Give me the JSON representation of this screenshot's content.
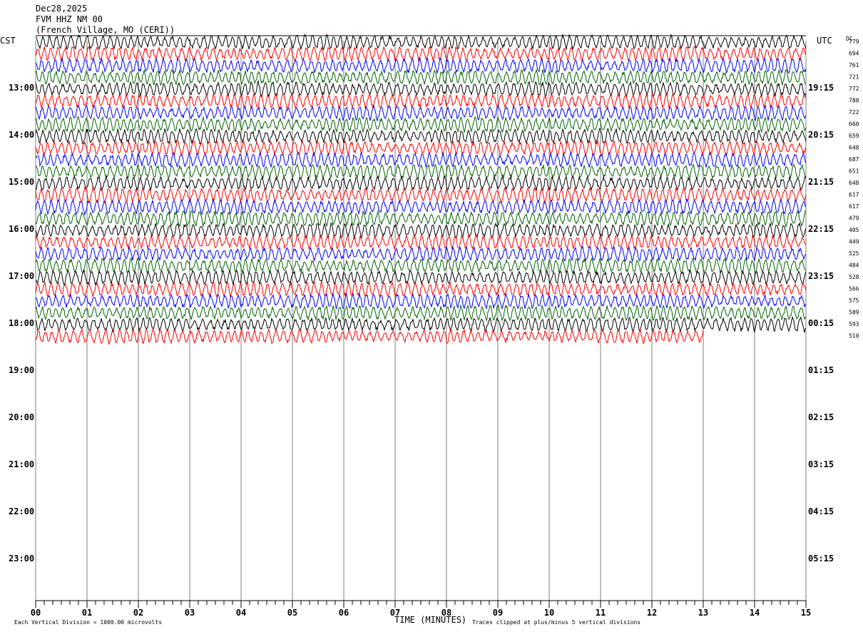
{
  "header": {
    "date": "Dec28,2025",
    "station": "FVM HHZ NM 00",
    "location": "(French Village, MO (CERI))"
  },
  "left_tz": "CST",
  "right_tz": "UTC",
  "dc_label": "DC",
  "footer": {
    "scale_note": "Each Vertical Division = 1000.00 microvolts",
    "xlabel": "TIME (MINUTES)",
    "clip_note": "Traces clipped at plus/minus 5 vertical divisions"
  },
  "colors": {
    "cycle": [
      "#000000",
      "#ff0000",
      "#0000ff",
      "#006400"
    ],
    "grid": "#808080"
  },
  "chart_data": {
    "type": "line",
    "x_range": [
      0,
      15
    ],
    "x_ticks": [
      "00",
      "01",
      "02",
      "03",
      "04",
      "05",
      "06",
      "07",
      "08",
      "09",
      "10",
      "11",
      "12",
      "13",
      "14",
      "15"
    ],
    "rows_total": 48,
    "rows_drawn": 26,
    "last_row_end_minute": 13,
    "row_interval_minutes": 15,
    "left_hour_labels": [
      "13:00",
      "14:00",
      "15:00",
      "16:00",
      "17:00",
      "18:00",
      "19:00",
      "20:00",
      "21:00",
      "22:00",
      "23:00"
    ],
    "right_hour_labels": [
      "19:15",
      "20:15",
      "21:15",
      "22:15",
      "23:15",
      "00:15",
      "01:15",
      "02:15",
      "03:15",
      "04:15",
      "05:15"
    ],
    "dc_offsets": [
      "779",
      "694",
      "761",
      "721",
      "772",
      "788",
      "722",
      "660",
      "659",
      "648",
      "687",
      "651",
      "648",
      "617",
      "617",
      "479",
      "405",
      "449",
      "525",
      "484",
      "528",
      "566",
      "575",
      "589",
      "593",
      "510"
    ]
  }
}
